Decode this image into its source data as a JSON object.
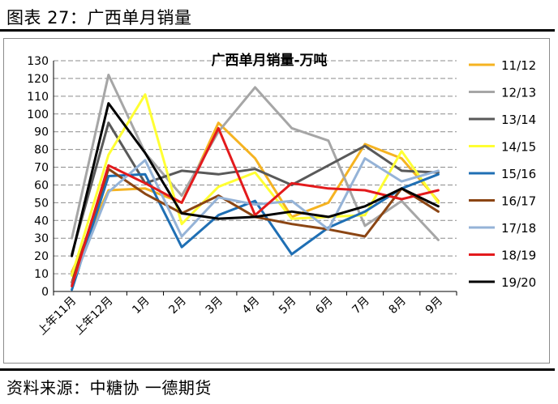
{
  "figure": {
    "title": "图表 27：广西单月销量",
    "source": "资料来源：中糖协 一德期货"
  },
  "chart_data": {
    "type": "line",
    "title": "广西单月销量-万吨",
    "categories": [
      "上年11月",
      "上年12月",
      "1月",
      "2月",
      "3月",
      "4月",
      "5月",
      "6月",
      "7月",
      "8月",
      "9月"
    ],
    "yticks": [
      0,
      10,
      20,
      30,
      40,
      50,
      60,
      70,
      80,
      90,
      100,
      110,
      120,
      130
    ],
    "ylim": [
      0,
      130
    ],
    "grid": true,
    "legend_position": "right",
    "series": [
      {
        "name": "11/12",
        "color": "#f5b321",
        "values": [
          11,
          57,
          58,
          50,
          95,
          75,
          42,
          50,
          83,
          75,
          51
        ]
      },
      {
        "name": "12/13",
        "color": "#a6a6a6",
        "values": [
          30,
          122,
          78,
          54,
          90,
          115,
          92,
          85,
          37,
          51,
          29
        ]
      },
      {
        "name": "13/14",
        "color": "#595959",
        "values": [
          21,
          95,
          61,
          68,
          66,
          69,
          60,
          71,
          82,
          68,
          67
        ]
      },
      {
        "name": "14/15",
        "color": "#ffff33",
        "values": [
          9,
          77,
          111,
          38,
          59,
          67,
          41,
          42,
          43,
          79,
          50
        ]
      },
      {
        "name": "15/16",
        "color": "#1f6fb4",
        "values": [
          1,
          65,
          66,
          25,
          43,
          51,
          21,
          36,
          45,
          58,
          66
        ]
      },
      {
        "name": "16/17",
        "color": "#8b4513",
        "values": [
          5,
          69,
          55,
          44,
          54,
          42,
          38,
          35,
          31,
          58,
          45
        ]
      },
      {
        "name": "17/18",
        "color": "#95b3d7",
        "values": [
          4,
          56,
          74,
          31,
          53,
          49,
          51,
          35,
          75,
          62,
          68
        ]
      },
      {
        "name": "18/19",
        "color": "#e31a1c",
        "values": [
          3,
          71,
          61,
          50,
          92,
          43,
          61,
          58,
          57,
          52,
          57
        ]
      },
      {
        "name": "19/20",
        "color": "#000000",
        "values": [
          20,
          106,
          78,
          44,
          41,
          42,
          45,
          42,
          48,
          58,
          48
        ]
      }
    ]
  }
}
